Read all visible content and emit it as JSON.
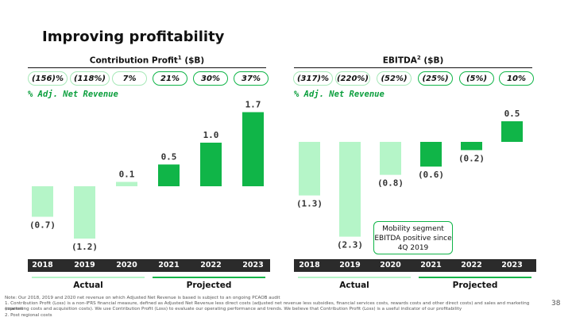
{
  "title": "Improving profitability",
  "left": {
    "heading": "Contribution Profit",
    "heading_sup": "1",
    "heading_unit": " ($B)",
    "pct_label": "% Adj. Net Revenue",
    "pills": [
      {
        "text": "(156)%",
        "tone": "neg"
      },
      {
        "text": "(118%)",
        "tone": "neg"
      },
      {
        "text": "7%",
        "tone": "neg"
      },
      {
        "text": "21%",
        "tone": "pos"
      },
      {
        "text": "30%",
        "tone": "pos"
      },
      {
        "text": "37%",
        "tone": "pos"
      }
    ],
    "period_actual": "Actual",
    "period_projected": "Projected"
  },
  "right": {
    "heading": "EBITDA",
    "heading_sup": "2",
    "heading_unit": " ($B)",
    "pct_label": "% Adj. Net Revenue",
    "pills": [
      {
        "text": "(317)%",
        "tone": "neg"
      },
      {
        "text": "(220%)",
        "tone": "neg"
      },
      {
        "text": "(52%)",
        "tone": "neg"
      },
      {
        "text": "(25%)",
        "tone": "pos"
      },
      {
        "text": "(5%)",
        "tone": "pos"
      },
      {
        "text": "10%",
        "tone": "pos"
      }
    ],
    "callout": "Mobility segment EBITDA positive since 4Q 2019",
    "period_actual": "Actual",
    "period_projected": "Projected"
  },
  "colors": {
    "actual": "#b5f5c8",
    "projected": "#10b548",
    "year_bar": "#2b2b2b",
    "pct_label": "#0a9e3c"
  },
  "chart_data": [
    {
      "type": "bar",
      "title": "Contribution Profit ($B)",
      "categories": [
        "2018",
        "2019",
        "2020",
        "2021",
        "2022",
        "2023"
      ],
      "values": [
        -0.7,
        -1.2,
        0.1,
        0.5,
        1.0,
        1.7
      ],
      "value_labels": [
        "(0.7)",
        "(1.2)",
        "0.1",
        "0.5",
        "1.0",
        "1.7"
      ],
      "groups": [
        "Actual",
        "Actual",
        "Actual",
        "Projected",
        "Projected",
        "Projected"
      ]
    },
    {
      "type": "bar",
      "title": "EBITDA ($B)",
      "categories": [
        "2018",
        "2019",
        "2020",
        "2021",
        "2022",
        "2023"
      ],
      "values": [
        -1.3,
        -2.3,
        -0.8,
        -0.6,
        -0.2,
        0.5
      ],
      "value_labels": [
        "(1.3)",
        "(2.3)",
        "(0.8)",
        "(0.6)",
        "(0.2)",
        "0.5"
      ],
      "groups": [
        "Actual",
        "Actual",
        "Actual",
        "Projected",
        "Projected",
        "Projected"
      ]
    }
  ],
  "notes": [
    "Note: Our 2018, 2019 and 2020 net revenue on which Adjusted Net Revenue is based is subject to an ongoing PCAOB audit",
    "1.      Contribution Profit (Loss) is a non-IFRS financial measure, defined as Adjusted Net Revenue less direct costs (adjusted net revenue less subsidies, financial services costs, rewards costs and other direct costs) and sales and marketing expense",
    "        (marketing costs and acquisition costs). We use Contribution Profit (Loss) to evaluate our operating performance and trends. We believe that Contribution Profit (Loss) is a useful indicator of our profitability",
    "2.      Post regional costs"
  ],
  "page_number": "38"
}
